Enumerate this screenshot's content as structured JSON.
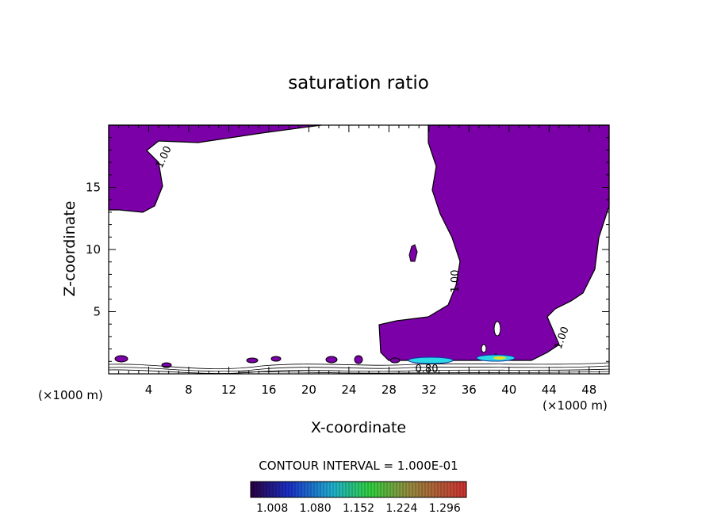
{
  "chart_data": {
    "type": "contour",
    "title": "saturation ratio",
    "xlabel": "X-coordinate",
    "ylabel": "Z-coordinate",
    "x_unit": "(×1000 m)",
    "x_unit_right": "(×1000 m)",
    "xlim": [
      0,
      50
    ],
    "ylim": [
      0,
      20
    ],
    "x_ticks": [
      4,
      8,
      12,
      16,
      20,
      24,
      28,
      32,
      36,
      40,
      44,
      48
    ],
    "y_ticks": [
      5,
      10,
      15
    ],
    "contour_labels": [
      "1.00",
      "1.00",
      "1.00",
      "0.80"
    ],
    "contour_interval_text": "CONTOUR INTERVAL = 1.000E-01",
    "colorbar_ticks": [
      "1.008",
      "1.080",
      "1.152",
      "1.224",
      "1.296"
    ],
    "colors": {
      "fill": "#7b00a8",
      "colorbar_low": "#2a0040",
      "colorbar_high": "#d03030"
    }
  }
}
